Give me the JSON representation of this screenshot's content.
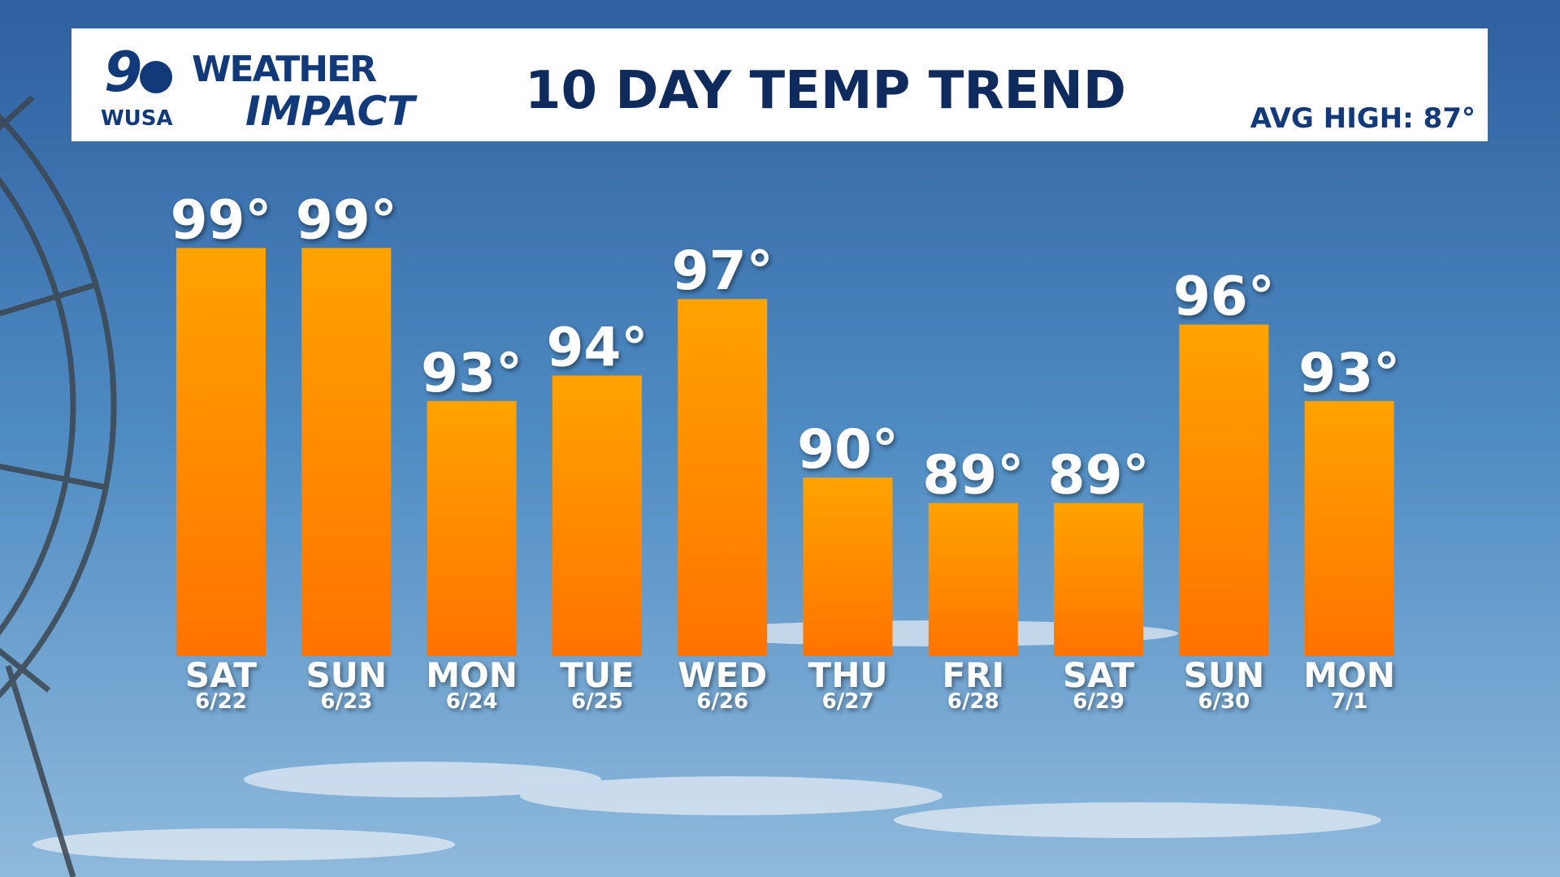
{
  "chart_data": {
    "type": "bar",
    "title": "10 DAY TEMP TREND",
    "annotation": "AVG HIGH: 87°",
    "logo": {
      "number": "9",
      "station": "WUSA",
      "line1": "WEATHER",
      "line2": "IMPACT"
    },
    "categories": [
      "SAT",
      "SUN",
      "MON",
      "TUE",
      "WED",
      "THU",
      "FRI",
      "SAT",
      "SUN",
      "MON"
    ],
    "dates": [
      "6/22",
      "6/23",
      "6/24",
      "6/25",
      "6/26",
      "6/27",
      "6/28",
      "6/29",
      "6/30",
      "7/1"
    ],
    "values": [
      99,
      99,
      93,
      94,
      97,
      90,
      89,
      89,
      96,
      93
    ],
    "value_labels": [
      "99°",
      "99°",
      "93°",
      "94°",
      "97°",
      "90°",
      "89°",
      "89°",
      "96°",
      "93°"
    ],
    "color": [
      "#ffa300",
      "#ff7300"
    ],
    "ylim": [
      83,
      100
    ]
  }
}
